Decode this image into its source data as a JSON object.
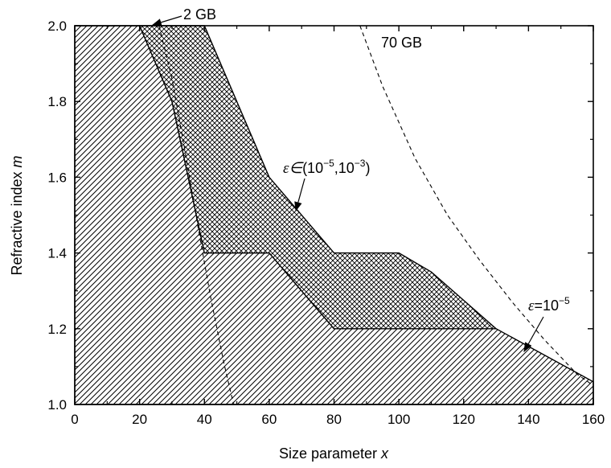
{
  "chart_data": {
    "type": "area",
    "xlabel": "Size parameter x",
    "ylabel": "Refractive index m",
    "xlim": [
      0,
      160
    ],
    "ylim": [
      1.0,
      2.0
    ],
    "x_ticks": [
      0,
      20,
      40,
      60,
      80,
      100,
      120,
      140,
      160
    ],
    "y_ticks": [
      1.0,
      1.2,
      1.4,
      1.6,
      1.8,
      2.0
    ],
    "x_tick_labels": [
      "0",
      "20",
      "40",
      "60",
      "80",
      "100",
      "120",
      "140",
      "160"
    ],
    "y_tick_labels": [
      "1.0",
      "1.2",
      "1.4",
      "1.6",
      "1.8",
      "2.0"
    ],
    "grid": false,
    "regions": [
      {
        "name": "ε=10⁻⁵",
        "fill": "diagonal-hatch",
        "boundary_x": [
          20,
          30,
          40,
          60,
          80,
          130,
          160,
          160
        ],
        "boundary_y": [
          2.0,
          1.8,
          1.4,
          1.4,
          1.2,
          1.2,
          1.06,
          1.0
        ]
      },
      {
        "name": "ε∈(10⁻⁵,10⁻³)",
        "fill": "crosshatch",
        "upper_x": [
          20,
          40,
          60,
          80,
          100,
          110,
          130
        ],
        "upper_y": [
          2.0,
          2.0,
          1.6,
          1.4,
          1.4,
          1.35,
          1.2
        ],
        "lower_x": [
          20,
          30,
          40,
          60,
          80,
          130
        ],
        "lower_y": [
          2.0,
          1.8,
          1.4,
          1.4,
          1.2,
          1.2
        ]
      }
    ],
    "series": [
      {
        "name": "2 GB",
        "style": "dashed",
        "x": [
          26,
          30,
          34,
          38,
          42,
          46,
          49
        ],
        "y": [
          2.0,
          1.86,
          1.67,
          1.47,
          1.28,
          1.11,
          1.0
        ]
      },
      {
        "name": "70 GB",
        "style": "dashed",
        "x": [
          88,
          95,
          105,
          115,
          125,
          135,
          145,
          155,
          160
        ],
        "y": [
          2.0,
          1.84,
          1.65,
          1.5,
          1.38,
          1.27,
          1.17,
          1.08,
          1.05
        ]
      }
    ],
    "annotations": {
      "gb2": "2 GB",
      "gb70": "70 GB",
      "eps_range_sym": "ε",
      "eps_range_in": "∈",
      "eps_range_rest": "(10",
      "eps_range_exp1": "−5",
      "eps_range_mid": ",10",
      "eps_range_exp2": "−3",
      "eps_range_close": ")",
      "eps_eq_sym": "ε",
      "eps_eq_rest": "=10",
      "eps_eq_exp": "−5"
    },
    "colors": {
      "axis": "#000000",
      "background": "#ffffff"
    }
  }
}
